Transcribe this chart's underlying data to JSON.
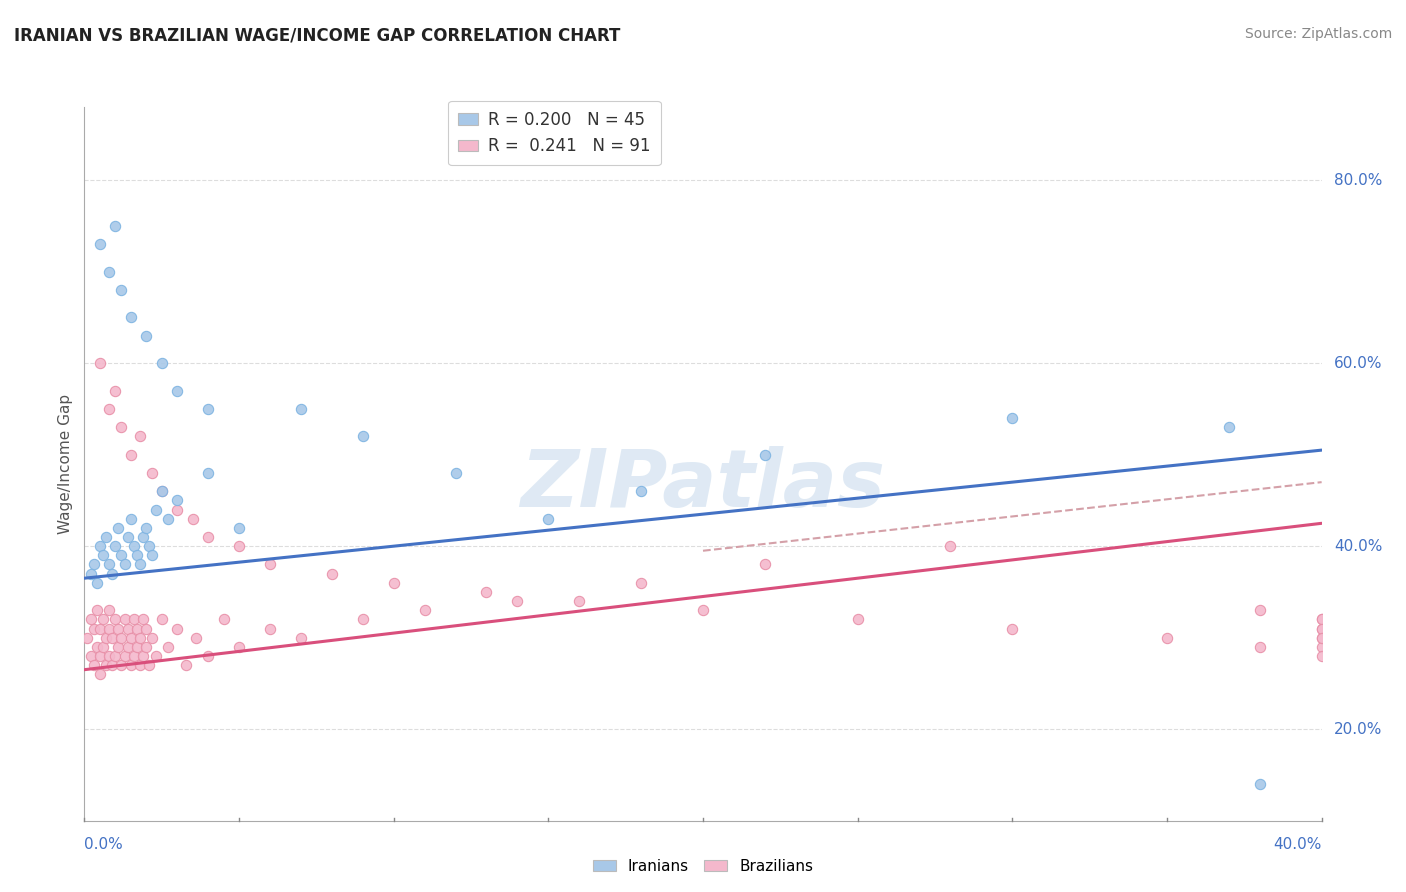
{
  "title": "IRANIAN VS BRAZILIAN WAGE/INCOME GAP CORRELATION CHART",
  "source": "Source: ZipAtlas.com",
  "ylabel": "Wage/Income Gap",
  "right_ytick_vals": [
    0.2,
    0.4,
    0.6,
    0.8
  ],
  "xlim": [
    0.0,
    0.4
  ],
  "ylim": [
    0.1,
    0.88
  ],
  "legend_r_iranian": "0.200",
  "legend_n_iranian": "45",
  "legend_r_brazilian": "0.241",
  "legend_n_brazilian": "91",
  "iranian_color": "#A8C8E8",
  "iranian_edge": "#7EB4E2",
  "brazilian_color": "#F4B8CC",
  "brazilian_edge": "#E890A8",
  "trend_iranian_color": "#4472C4",
  "trend_brazilian_color": "#D94F7C",
  "trend_dash_color": "#D4A0A8",
  "watermark": "ZIPatlas",
  "grid_color": "#DDDDDD",
  "iranian_x": [
    0.002,
    0.003,
    0.004,
    0.005,
    0.006,
    0.007,
    0.008,
    0.009,
    0.01,
    0.011,
    0.012,
    0.013,
    0.014,
    0.015,
    0.016,
    0.017,
    0.018,
    0.019,
    0.02,
    0.021,
    0.022,
    0.023,
    0.025,
    0.027,
    0.03,
    0.04,
    0.05,
    0.07,
    0.09,
    0.12,
    0.15,
    0.18,
    0.22,
    0.3,
    0.38,
    0.005,
    0.008,
    0.01,
    0.012,
    0.015,
    0.02,
    0.025,
    0.03,
    0.04,
    0.37
  ],
  "iranian_y": [
    0.37,
    0.38,
    0.36,
    0.4,
    0.39,
    0.41,
    0.38,
    0.37,
    0.4,
    0.42,
    0.39,
    0.38,
    0.41,
    0.43,
    0.4,
    0.39,
    0.38,
    0.41,
    0.42,
    0.4,
    0.39,
    0.44,
    0.46,
    0.43,
    0.45,
    0.48,
    0.42,
    0.55,
    0.52,
    0.48,
    0.43,
    0.46,
    0.5,
    0.54,
    0.14,
    0.73,
    0.7,
    0.75,
    0.68,
    0.65,
    0.63,
    0.6,
    0.57,
    0.55,
    0.53
  ],
  "brazilian_x": [
    0.001,
    0.002,
    0.002,
    0.003,
    0.003,
    0.004,
    0.004,
    0.005,
    0.005,
    0.005,
    0.006,
    0.006,
    0.007,
    0.007,
    0.008,
    0.008,
    0.008,
    0.009,
    0.009,
    0.01,
    0.01,
    0.011,
    0.011,
    0.012,
    0.012,
    0.013,
    0.013,
    0.014,
    0.014,
    0.015,
    0.015,
    0.016,
    0.016,
    0.017,
    0.017,
    0.018,
    0.018,
    0.019,
    0.019,
    0.02,
    0.02,
    0.021,
    0.022,
    0.023,
    0.025,
    0.027,
    0.03,
    0.033,
    0.036,
    0.04,
    0.045,
    0.05,
    0.06,
    0.07,
    0.09,
    0.11,
    0.14,
    0.18,
    0.22,
    0.28,
    0.005,
    0.008,
    0.01,
    0.012,
    0.015,
    0.018,
    0.022,
    0.025,
    0.03,
    0.035,
    0.04,
    0.05,
    0.06,
    0.08,
    0.1,
    0.13,
    0.16,
    0.2,
    0.25,
    0.3,
    0.35,
    0.38,
    0.38,
    0.4,
    0.4,
    0.4,
    0.4,
    0.4,
    0.4,
    0.4,
    0.4
  ],
  "brazilian_y": [
    0.3,
    0.28,
    0.32,
    0.27,
    0.31,
    0.29,
    0.33,
    0.26,
    0.28,
    0.31,
    0.29,
    0.32,
    0.27,
    0.3,
    0.28,
    0.31,
    0.33,
    0.27,
    0.3,
    0.28,
    0.32,
    0.29,
    0.31,
    0.27,
    0.3,
    0.28,
    0.32,
    0.29,
    0.31,
    0.27,
    0.3,
    0.28,
    0.32,
    0.29,
    0.31,
    0.27,
    0.3,
    0.28,
    0.32,
    0.29,
    0.31,
    0.27,
    0.3,
    0.28,
    0.32,
    0.29,
    0.31,
    0.27,
    0.3,
    0.28,
    0.32,
    0.29,
    0.31,
    0.3,
    0.32,
    0.33,
    0.34,
    0.36,
    0.38,
    0.4,
    0.6,
    0.55,
    0.57,
    0.53,
    0.5,
    0.52,
    0.48,
    0.46,
    0.44,
    0.43,
    0.41,
    0.4,
    0.38,
    0.37,
    0.36,
    0.35,
    0.34,
    0.33,
    0.32,
    0.31,
    0.3,
    0.29,
    0.33,
    0.32,
    0.31,
    0.3,
    0.29,
    0.28,
    0.32,
    0.31,
    0.3
  ],
  "trend_iranian_x0": 0.0,
  "trend_iranian_y0": 0.365,
  "trend_iranian_x1": 0.4,
  "trend_iranian_y1": 0.505,
  "trend_brazilian_x0": 0.0,
  "trend_brazilian_y0": 0.265,
  "trend_brazilian_x1": 0.4,
  "trend_brazilian_y1": 0.425,
  "trend_dash_x0": 0.2,
  "trend_dash_y0": 0.395,
  "trend_dash_x1": 0.4,
  "trend_dash_y1": 0.47
}
